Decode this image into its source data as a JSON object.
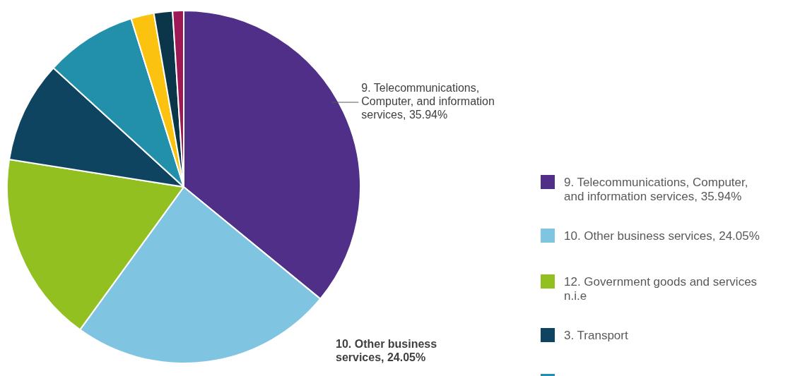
{
  "chart_data": {
    "type": "pie",
    "categories": [
      "9. Telecommunications, Computer, and information services, 35.94%",
      "10. Other business services, 24.05%",
      "12. Government goods and services n.i.e",
      "3. Transport",
      null,
      null,
      null,
      null
    ],
    "values": [
      35.94,
      24.05,
      17.5,
      9.3,
      8.4,
      2.1,
      1.7,
      1.01
    ],
    "colors": [
      "#4f2f87",
      "#7fc4e1",
      "#92c020",
      "#0f4461",
      "#2290ab",
      "#fbc30f",
      "#0b3549",
      "#9d1a57"
    ],
    "annotations": [
      "9. Telecommunications, Computer, and information services, 35.94%",
      "10. Other business services, 24.05%"
    ],
    "legend": "right"
  }
}
